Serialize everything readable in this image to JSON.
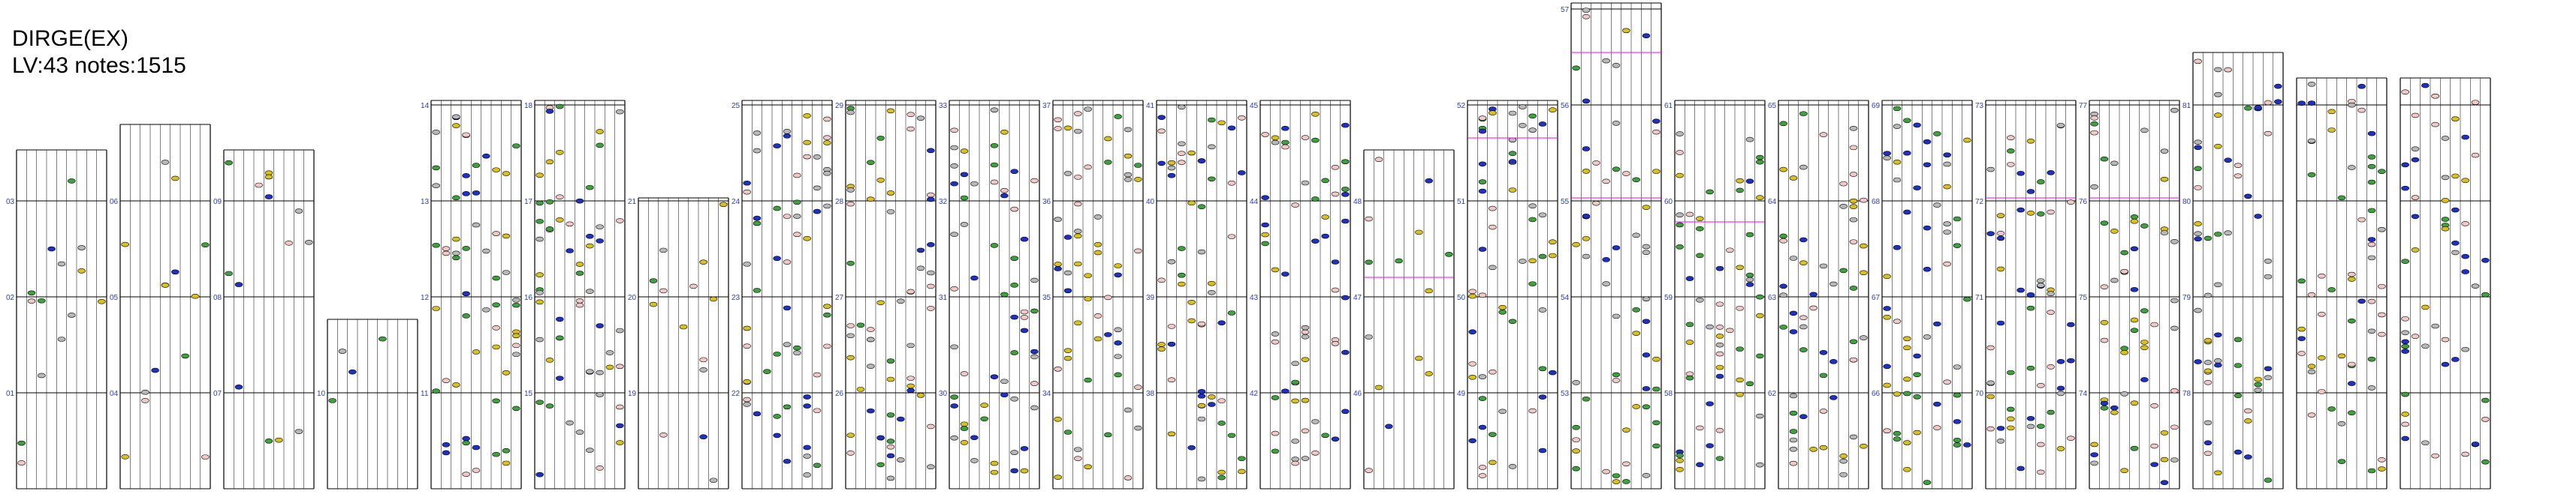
{
  "song": {
    "title": "DIRGE(EX)",
    "meta": "LV:43 notes:1515"
  },
  "colors": {
    "lane_line": "#000000",
    "measure_line": "#000000",
    "measure_label": "#2a3bd8",
    "bpm_line": "#ff00ff",
    "bpm_label": "#2aa02a",
    "note_gray": "#b8b8b8",
    "note_yellow": "#d8c020",
    "note_green": "#40a040",
    "note_blue": "#2030c0",
    "note_red": "#f0c8c8"
  },
  "measure_labels": [
    "01",
    "02",
    "03",
    "04",
    "05",
    "06",
    "07",
    "08",
    "09",
    "10",
    "11",
    "12",
    "13",
    "14",
    "15",
    "16",
    "17",
    "18",
    "19",
    "20",
    "21",
    "22",
    "23",
    "24",
    "25",
    "26",
    "27",
    "28",
    "29",
    "30",
    "31",
    "32",
    "33",
    "34",
    "35",
    "36",
    "37",
    "38",
    "39",
    "40",
    "41",
    "42",
    "43",
    "44",
    "45",
    "46",
    "47",
    "48",
    "49",
    "50",
    "51",
    "52",
    "53",
    "54",
    "55",
    "56",
    "57",
    "58",
    "59",
    "60",
    "61",
    "62",
    "63",
    "64",
    "65",
    "66",
    "67",
    "68",
    "69",
    "70",
    "71",
    "72",
    "73",
    "74",
    "75",
    "76",
    "77",
    "78",
    "79",
    "80",
    "81"
  ]
}
